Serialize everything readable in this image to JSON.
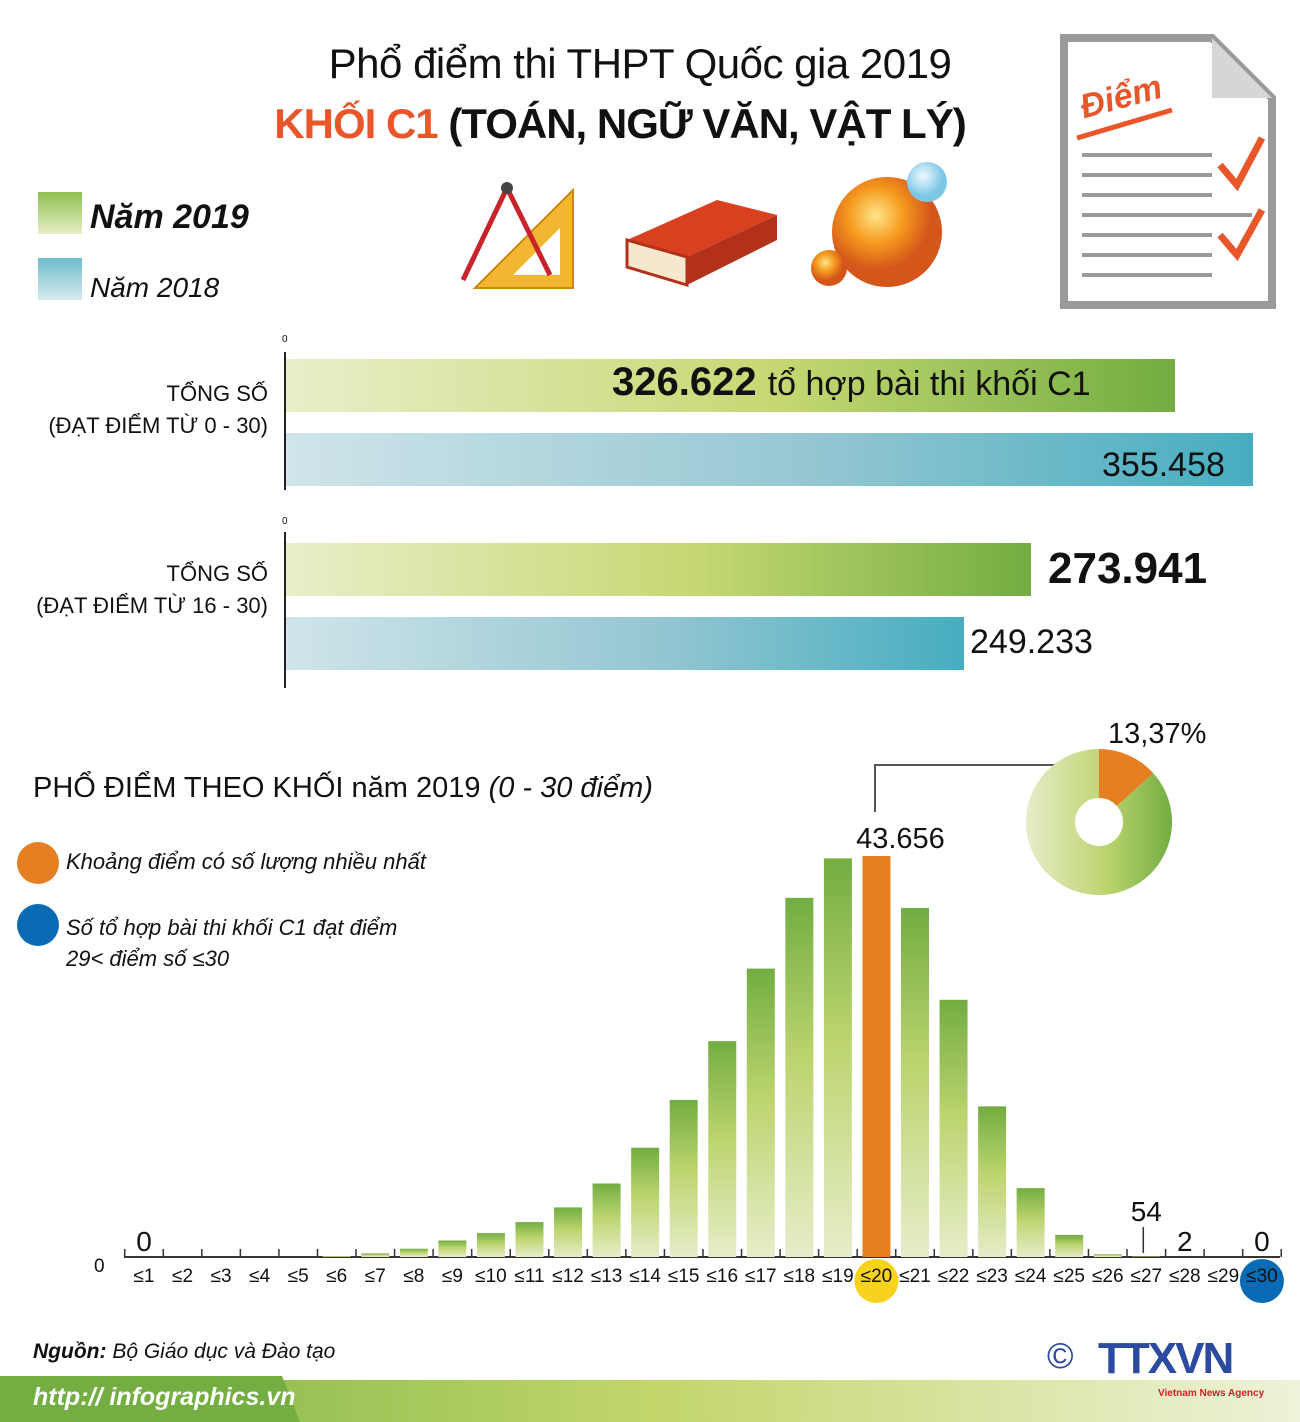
{
  "header": {
    "title": "Phổ điểm thi THPT Quốc gia 2019",
    "subtitle_highlight": "KHỐI C1",
    "subtitle_rest": "(TOÁN, NGỮ VĂN, VẬT LÝ)",
    "doc_icon_label": "Điểm"
  },
  "legend": {
    "items": [
      {
        "label": "Năm 2019",
        "color": "#8dbf4e"
      },
      {
        "label": "Năm 2018",
        "color": "#6fbccb"
      }
    ]
  },
  "icons": [
    "compass-ruler-icon",
    "book-icon",
    "globe-icon",
    "score-document-icon"
  ],
  "colors": {
    "highlight": "#e8562a",
    "max_bar": "#e67e22",
    "y2019": "#72ad42",
    "y2018": "#46aec0",
    "blue_dot": "#0a6bb5",
    "yellow_dot": "#f7d21e"
  },
  "chart_data": [
    {
      "type": "bar",
      "orientation": "horizontal",
      "axis_tick": "0",
      "categories": [
        "TỔNG SỐ\n(ĐẠT ĐIỂM TỪ 0 - 30)",
        "TỔNG SỐ\n(ĐẠT ĐIỂM TỪ 16 - 30)"
      ],
      "category_lines": [
        [
          "TỔNG SỐ",
          "(ĐẠT ĐIỂM TỪ 0 - 30)"
        ],
        [
          "TỔNG SỐ",
          "(ĐẠT ĐIỂM TỪ 16 - 30)"
        ]
      ],
      "series": [
        {
          "name": "Năm 2019",
          "values": [
            326622,
            273941
          ],
          "labels": [
            "326.622",
            "273.941"
          ]
        },
        {
          "name": "Năm 2018",
          "values": [
            355458,
            249233
          ],
          "labels": [
            "355.458",
            "249.233"
          ]
        }
      ],
      "annotation": "tổ hợp bài thi khối C1"
    },
    {
      "type": "bar",
      "title": "PHỔ ĐIỂM THEO KHỐI năm 2019",
      "title_suffix": "(0 - 30 điểm)",
      "y_origin_label": "0",
      "categories": [
        "≤1",
        "≤2",
        "≤3",
        "≤4",
        "≤5",
        "≤6",
        "≤7",
        "≤8",
        "≤9",
        "≤10",
        "≤11",
        "≤12",
        "≤13",
        "≤14",
        "≤15",
        "≤16",
        "≤17",
        "≤18",
        "≤19",
        "≤20",
        "≤21",
        "≤22",
        "≤23",
        "≤24",
        "≤25",
        "≤26",
        "≤27",
        "≤28",
        "≤29",
        "≤30"
      ],
      "values": [
        0,
        0,
        0,
        0,
        0,
        100,
        400,
        900,
        1800,
        2600,
        3800,
        5400,
        8000,
        11900,
        17100,
        23500,
        31400,
        39100,
        43400,
        43656,
        38000,
        28000,
        16400,
        7500,
        2400,
        300,
        54,
        2,
        0,
        0
      ],
      "data_labels": [
        {
          "category": "≤1",
          "text": "0"
        },
        {
          "category": "≤20",
          "text": "43.656"
        },
        {
          "category": "≤27",
          "text": "54"
        },
        {
          "category": "≤28",
          "text": "2"
        },
        {
          "category": "≤30",
          "text": "0"
        }
      ],
      "highlight_max": "≤20",
      "highlight_top": "≤30",
      "notes": [
        {
          "text": "Khoảng điểm có số lượng nhiều nhất",
          "color": "#e67e22"
        },
        {
          "text": "Số tổ hợp bài thi khối C1 đạt điểm",
          "text2": "29< điểm số ≤30",
          "color": "#0a6bb5"
        }
      ]
    },
    {
      "type": "pie",
      "style": "donut",
      "values": [
        13.37,
        86.63
      ],
      "labels": [
        "13,37%",
        ""
      ],
      "colors": [
        "#e67e22",
        "#8dbf4e"
      ]
    }
  ],
  "footer": {
    "source_label": "Nguồn:",
    "source": "Bộ Giáo dục và Đào tạo",
    "url": "http:// infographics.vn",
    "logo": "TTXVN",
    "logo_sub": "Vietnam News Agency",
    "copyright": "©"
  }
}
